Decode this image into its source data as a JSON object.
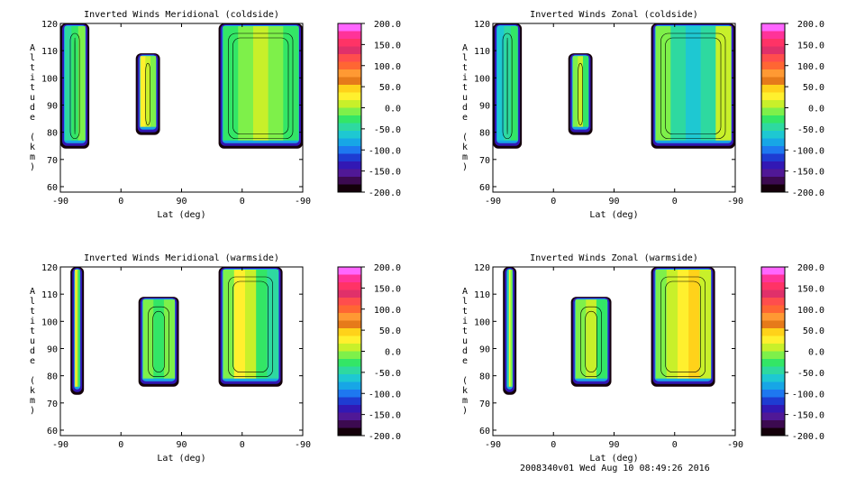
{
  "footer": "2008340v01 Wed Aug 10 08:49:26 2016",
  "colorbar": {
    "labels": [
      "200.0",
      "150.0",
      "100.0",
      "50.0",
      "0.0",
      "-50.0",
      "-100.0",
      "-150.0",
      "-200.0"
    ],
    "colors": [
      "#ff66ff",
      "#ff3399",
      "#ff3366",
      "#e0306a",
      "#ff4d4d",
      "#ff6633",
      "#ff9933",
      "#e67a1a",
      "#ffd21a",
      "#fff02e",
      "#c8f02a",
      "#7ef04a",
      "#33e666",
      "#2ed9a0",
      "#1ec8d2",
      "#17a6e6",
      "#1e78f0",
      "#1e3cd2",
      "#3218b4",
      "#501896",
      "#3c0a50",
      "#14000a"
    ]
  },
  "chart_data": [
    {
      "type": "heatmap",
      "title": "Inverted Winds Meridional (coldside)",
      "xlabel": "Lat (deg)",
      "ylabel": "Altitude (km)",
      "xticks": [
        "-90",
        "0",
        "90",
        "0",
        "-90"
      ],
      "yticks": [
        "60",
        "70",
        "80",
        "90",
        "100",
        "110",
        "120"
      ],
      "ylim": [
        58,
        120
      ],
      "zlim": [
        -200,
        200
      ],
      "regions": [
        {
          "x": [
            -90,
            -47
          ],
          "alt": [
            74,
            120
          ]
        },
        {
          "x": [
            22,
            58
          ],
          "alt": [
            79,
            109
          ]
        },
        {
          "x": [
            145,
            270
          ],
          "alt": [
            74,
            120
          ]
        }
      ]
    },
    {
      "type": "heatmap",
      "title": "Inverted Winds Zonal (coldside)",
      "xlabel": "Lat (deg)",
      "ylabel": "Altitude (km)",
      "xticks": [
        "-90",
        "0",
        "90",
        "0",
        "-90"
      ],
      "yticks": [
        "60",
        "70",
        "80",
        "90",
        "100",
        "110",
        "120"
      ],
      "ylim": [
        58,
        120
      ],
      "zlim": [
        -200,
        200
      ],
      "regions": [
        {
          "x": [
            -90,
            -47
          ],
          "alt": [
            74,
            120
          ]
        },
        {
          "x": [
            22,
            58
          ],
          "alt": [
            79,
            109
          ]
        },
        {
          "x": [
            145,
            270
          ],
          "alt": [
            74,
            120
          ]
        }
      ]
    },
    {
      "type": "heatmap",
      "title": "Inverted Winds Meridional (warmside)",
      "xlabel": "Lat (deg)",
      "ylabel": "Altitude (km)",
      "xticks": [
        "-90",
        "0",
        "90",
        "0",
        "-90"
      ],
      "yticks": [
        "60",
        "70",
        "80",
        "90",
        "100",
        "110",
        "120"
      ],
      "ylim": [
        58,
        120
      ],
      "zlim": [
        -200,
        200
      ],
      "regions": [
        {
          "x": [
            -75,
            -55
          ],
          "alt": [
            73,
            120
          ]
        },
        {
          "x": [
            26,
            86
          ],
          "alt": [
            76,
            109
          ]
        },
        {
          "x": [
            145,
            240
          ],
          "alt": [
            76,
            120
          ]
        }
      ]
    },
    {
      "type": "heatmap",
      "title": "Inverted Winds Zonal (warmside)",
      "xlabel": "Lat (deg)",
      "ylabel": "Altitude (km)",
      "xticks": [
        "-90",
        "0",
        "90",
        "0",
        "-90"
      ],
      "yticks": [
        "60",
        "70",
        "80",
        "90",
        "100",
        "110",
        "120"
      ],
      "ylim": [
        58,
        120
      ],
      "zlim": [
        -200,
        200
      ],
      "regions": [
        {
          "x": [
            -75,
            -55
          ],
          "alt": [
            73,
            120
          ]
        },
        {
          "x": [
            26,
            86
          ],
          "alt": [
            76,
            109
          ]
        },
        {
          "x": [
            145,
            240
          ],
          "alt": [
            76,
            120
          ]
        }
      ]
    }
  ]
}
